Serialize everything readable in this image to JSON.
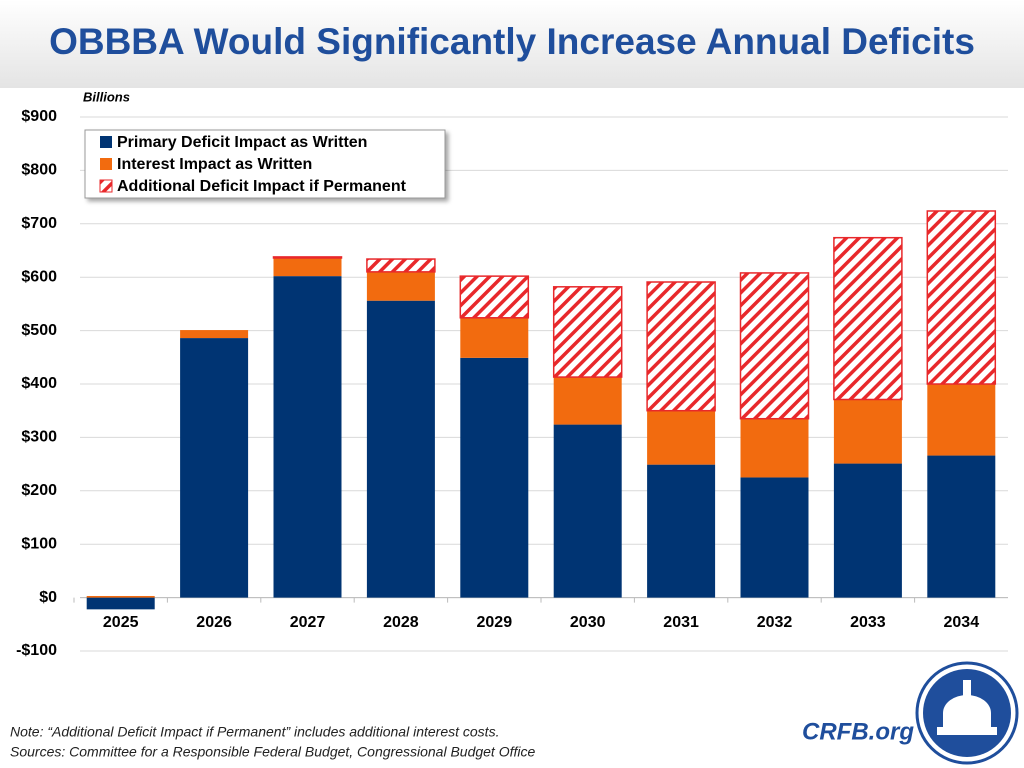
{
  "chart_data": {
    "type": "stacked_bar",
    "title": "OBBBA Would Significantly Increase Annual Deficits",
    "y_label": "Billions",
    "categories": [
      "2025",
      "2026",
      "2027",
      "2028",
      "2029",
      "2030",
      "2031",
      "2032",
      "2033",
      "2034"
    ],
    "series": [
      {
        "name": "Primary Deficit Impact as Written",
        "color": "#003473",
        "pattern": "solid",
        "values": [
          -22,
          486,
          602,
          556,
          449,
          324,
          249,
          225,
          251,
          266
        ]
      },
      {
        "name": "Interest Impact as Written",
        "color": "#f26b0f",
        "pattern": "solid",
        "values": [
          3,
          15,
          34,
          54,
          75,
          89,
          101,
          110,
          120,
          134
        ]
      },
      {
        "name": "Additional Deficit Impact if Permanent",
        "color": "#e8282b",
        "pattern": "hatch",
        "values": [
          0,
          0,
          2,
          24,
          78,
          169,
          241,
          273,
          303,
          324
        ]
      }
    ],
    "ylim": [
      -100,
      900
    ],
    "yticks": [
      {
        "value": -100,
        "label": "-$100"
      },
      {
        "value": 0,
        "label": "$0"
      },
      {
        "value": 100,
        "label": "$100"
      },
      {
        "value": 200,
        "label": "$200"
      },
      {
        "value": 300,
        "label": "$300"
      },
      {
        "value": 400,
        "label": "$400"
      },
      {
        "value": 500,
        "label": "$500"
      },
      {
        "value": 600,
        "label": "$600"
      },
      {
        "value": 700,
        "label": "$700"
      },
      {
        "value": 800,
        "label": "$800"
      },
      {
        "value": 900,
        "label": "$900"
      }
    ],
    "grid": true,
    "legend": "upper-left",
    "note": "Note: “Additional Deficit Impact if Permanent” includes additional interest costs.",
    "source": "Sources: Committee for a Responsible Federal Budget, Congressional Budget Office",
    "brand": "CRFB.org"
  }
}
